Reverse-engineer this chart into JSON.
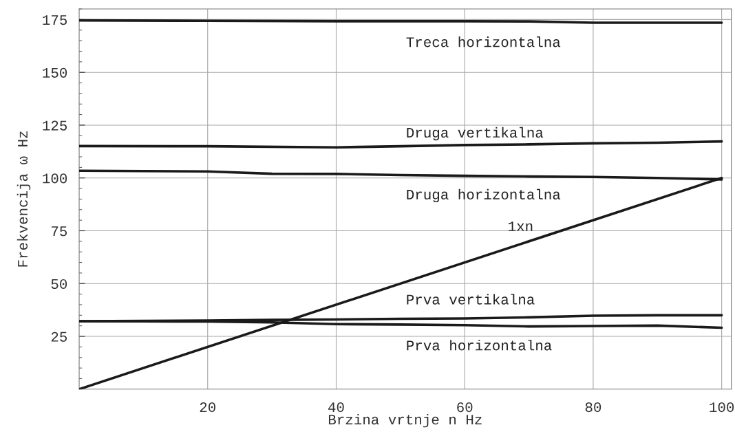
{
  "chart_data": {
    "type": "line",
    "xlabel": "Brzina vrtnje n Hz",
    "ylabel": "Frekvencija ω Hz",
    "xlim": [
      0,
      101.5
    ],
    "ylim": [
      0,
      180
    ],
    "xticks": [
      20,
      40,
      60,
      80,
      100
    ],
    "yticks": [
      25,
      50,
      75,
      100,
      125,
      150,
      175
    ],
    "grid": true,
    "legend": false,
    "marker": "none",
    "line_style": "solid",
    "series": [
      {
        "name": "Treca horizontalna",
        "color": "#1a1a1a",
        "x": [
          0,
          20,
          40,
          60,
          70,
          80,
          100
        ],
        "values": [
          174.6,
          174.4,
          174.2,
          174.2,
          174.1,
          173.5,
          173.5
        ]
      },
      {
        "name": "Druga vertikalna",
        "color": "#1a1a1a",
        "x": [
          0,
          20,
          40,
          50,
          60,
          70,
          80,
          90,
          100
        ],
        "values": [
          115.1,
          115.0,
          114.5,
          115.0,
          115.6,
          115.9,
          116.4,
          116.7,
          117.3
        ]
      },
      {
        "name": "Druga horizontalna",
        "color": "#1a1a1a",
        "x": [
          0,
          20,
          30,
          40,
          50,
          60,
          70,
          80,
          90,
          100
        ],
        "values": [
          103.4,
          103.1,
          102.0,
          101.9,
          101.4,
          101.0,
          100.7,
          100.5,
          100.0,
          99.3
        ]
      },
      {
        "name": "1xn",
        "color": "#1a1a1a",
        "x": [
          0,
          100
        ],
        "values": [
          0,
          100
        ]
      },
      {
        "name": "Prva vertikalna",
        "color": "#1a1a1a",
        "x": [
          0,
          10,
          20,
          30,
          40,
          50,
          60,
          70,
          80,
          90,
          100
        ],
        "values": [
          32.2,
          32.3,
          32.5,
          32.8,
          33.0,
          33.3,
          33.5,
          34.0,
          34.8,
          35.0,
          35.0
        ]
      },
      {
        "name": "Prva horizontalna",
        "color": "#1a1a1a",
        "x": [
          0,
          10,
          20,
          30,
          40,
          50,
          60,
          70,
          80,
          90,
          100
        ],
        "values": [
          32.2,
          32.1,
          32.0,
          31.6,
          30.8,
          30.6,
          30.3,
          29.7,
          29.9,
          30.1,
          29.1
        ]
      }
    ]
  }
}
